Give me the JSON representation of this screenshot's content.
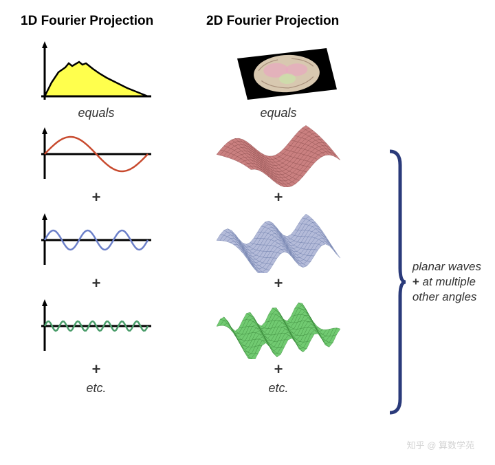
{
  "titles": {
    "left": "1D Fourier Projection",
    "right": "2D Fourier Projection"
  },
  "labels": {
    "equals": "equals",
    "plus": "+",
    "etc": "etc."
  },
  "bracket_text": {
    "line1": "planar waves",
    "line2": "at multiple",
    "line3": "other angles",
    "plus": "+"
  },
  "colors": {
    "axis": "#000000",
    "signal_fill": "#ffff4d",
    "signal_stroke": "#000000",
    "wave1": "#c84a2e",
    "wave2": "#6b7fc9",
    "wave3": "#4a9c6a",
    "surface1_fill": "#c87a7a",
    "surface1_stroke": "#8a4a4a",
    "surface2_fill": "#b0b8d8",
    "surface2_stroke": "#6a7aa8",
    "surface3_fill": "#6ac86a",
    "surface3_stroke": "#3a8a3a",
    "brain_bg": "#000000",
    "bracket": "#2a3a7a"
  },
  "waves_1d": [
    {
      "amplitude": 25,
      "frequency": 1.0,
      "color_key": "wave1"
    },
    {
      "amplitude": 14,
      "frequency": 3.0,
      "color_key": "wave2"
    },
    {
      "amplitude": 7,
      "frequency": 7.0,
      "color_key": "wave3"
    }
  ],
  "signal_1d": {
    "points": [
      [
        0,
        0
      ],
      [
        10,
        20
      ],
      [
        20,
        35
      ],
      [
        30,
        42
      ],
      [
        35,
        48
      ],
      [
        40,
        44
      ],
      [
        50,
        50
      ],
      [
        55,
        46
      ],
      [
        60,
        48
      ],
      [
        70,
        40
      ],
      [
        80,
        33
      ],
      [
        90,
        27
      ],
      [
        100,
        22
      ],
      [
        110,
        17
      ],
      [
        120,
        12
      ],
      [
        130,
        8
      ],
      [
        140,
        4
      ],
      [
        150,
        0
      ]
    ]
  },
  "surfaces_2d": [
    {
      "color_fill_key": "surface1_fill",
      "color_stroke_key": "surface1_stroke",
      "frequency": 1.2,
      "amplitude": 18
    },
    {
      "color_fill_key": "surface2_fill",
      "color_stroke_key": "surface2_stroke",
      "frequency": 2.2,
      "amplitude": 14
    },
    {
      "color_fill_key": "surface3_fill",
      "color_stroke_key": "surface3_stroke",
      "frequency": 3.5,
      "amplitude": 12
    }
  ],
  "watermark": "知乎 @ 算数学苑"
}
